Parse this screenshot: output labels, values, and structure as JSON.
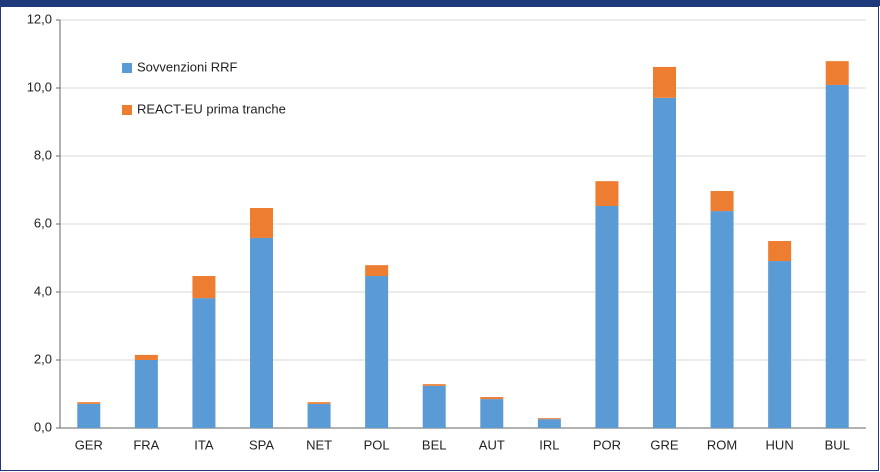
{
  "chart_data": {
    "type": "stacked_bar",
    "categories": [
      "GER",
      "FRA",
      "ITA",
      "SPA",
      "NET",
      "POL",
      "BEL",
      "AUT",
      "IRL",
      "POR",
      "GRE",
      "ROM",
      "HUN",
      "BUL"
    ],
    "series": [
      {
        "name": "Sovvenzioni RRF",
        "color": "#5b9bd5",
        "values": [
          0.71,
          2.0,
          3.82,
          5.59,
          0.71,
          4.47,
          1.24,
          0.85,
          0.26,
          6.53,
          9.71,
          6.38,
          4.91,
          10.09
        ]
      },
      {
        "name": "REACT-EU prima tranche",
        "color": "#ed7d31",
        "values": [
          0.05,
          0.15,
          0.65,
          0.88,
          0.05,
          0.32,
          0.05,
          0.06,
          0.03,
          0.73,
          0.91,
          0.59,
          0.59,
          0.7
        ]
      }
    ],
    "ylim": [
      0,
      12
    ],
    "yticks": [
      {
        "value": 0,
        "label": "0,0"
      },
      {
        "value": 2,
        "label": "2,0"
      },
      {
        "value": 4,
        "label": "4,0"
      },
      {
        "value": 6,
        "label": "6,0"
      },
      {
        "value": 8,
        "label": "8,0"
      },
      {
        "value": 10,
        "label": "10,0"
      },
      {
        "value": 12,
        "label": "12,0"
      }
    ],
    "grid": true
  }
}
